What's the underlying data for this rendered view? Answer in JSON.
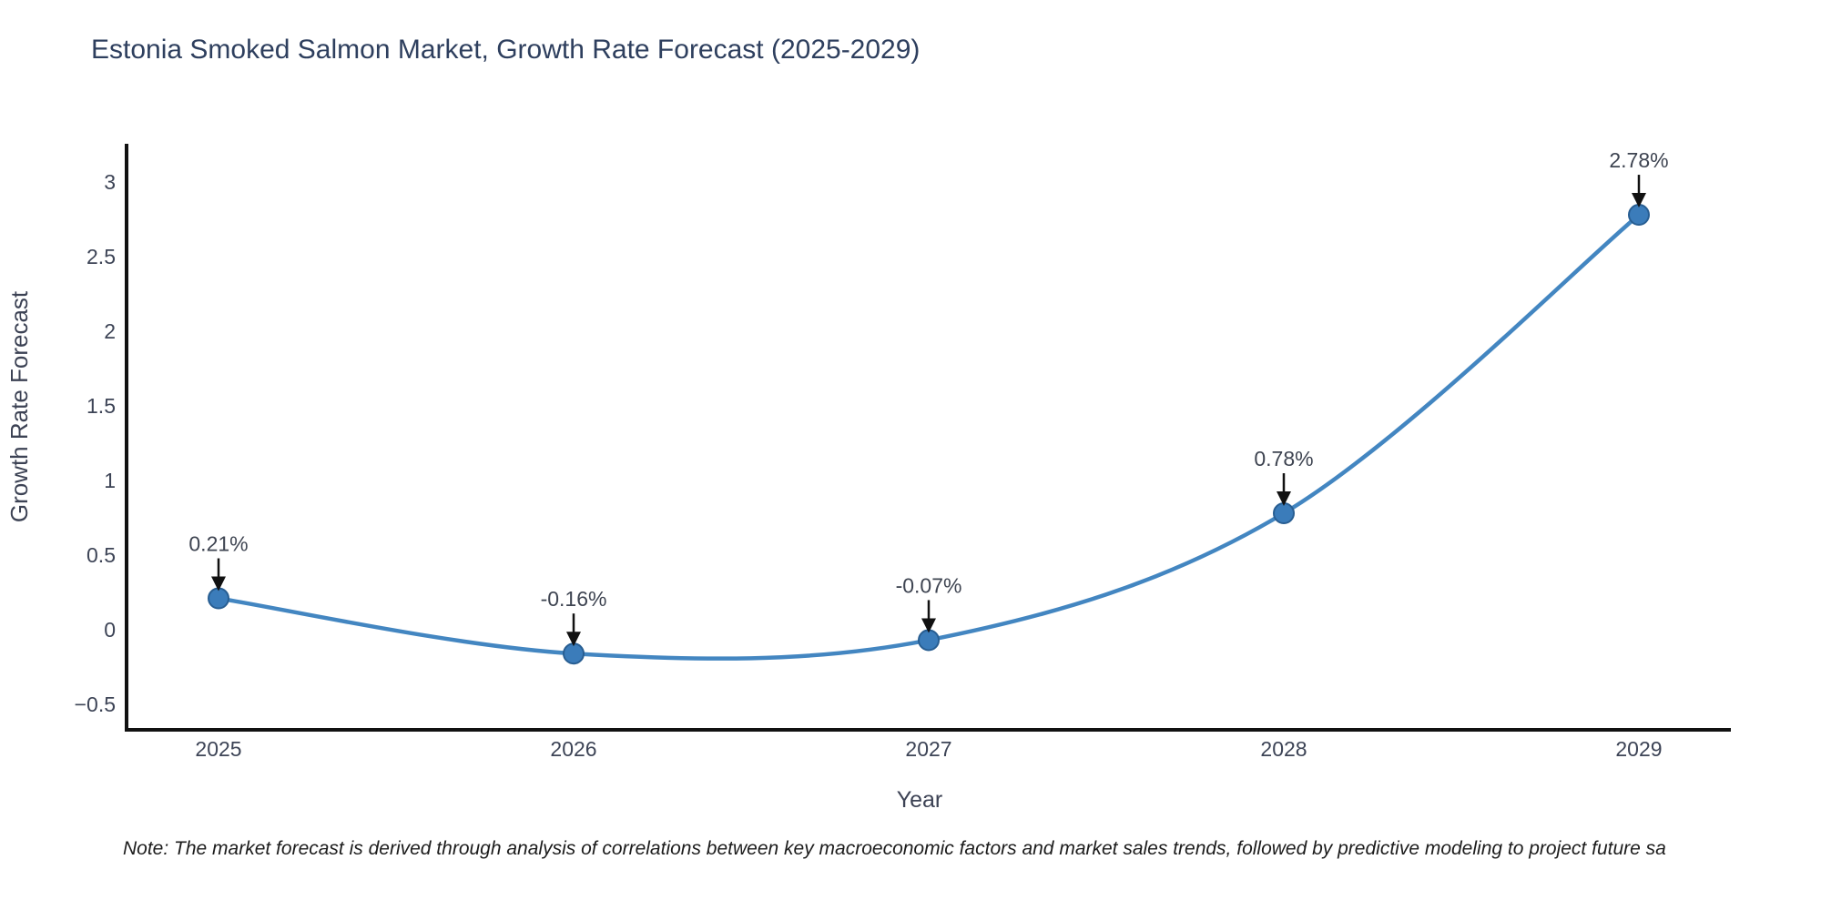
{
  "note": "Note: The market forecast is derived through analysis of correlations between key macroeconomic factors and market sales trends, followed by predictive modeling to project future sa",
  "chart_data": {
    "type": "line",
    "title": "Estonia Smoked Salmon Market, Growth Rate Forecast (2025-2029)",
    "xlabel": "Year",
    "ylabel": "Growth Rate Forecast",
    "x": [
      2025,
      2026,
      2027,
      2028,
      2029
    ],
    "values": [
      0.21,
      -0.16,
      -0.07,
      0.78,
      2.78
    ],
    "point_labels": [
      "0.21%",
      "-0.16%",
      "-0.07%",
      "0.78%",
      "2.78%"
    ],
    "x_tick_labels": [
      "2025",
      "2026",
      "2027",
      "2028",
      "2029"
    ],
    "y_ticks": [
      -0.5,
      0,
      0.5,
      1,
      1.5,
      2,
      2.5,
      3
    ],
    "y_tick_labels": [
      "−0.5",
      "0",
      "0.5",
      "1",
      "1.5",
      "2",
      "2.5",
      "3"
    ],
    "xlim": [
      2024.741,
      2029.259
    ],
    "ylim": [
      -0.671,
      3.256
    ],
    "grid": false,
    "legend": "none",
    "line_shape": "spline",
    "colors": {
      "line": "#4386c1",
      "marker_fill": "#3b7cba",
      "marker_edge": "#285e92",
      "axis": "#111111",
      "tick_text": "#3d4456",
      "axis_title_text": "#3c4254",
      "title_text": "#2e3f5e",
      "annotation_text": "#3e4451",
      "arrow": "#111111",
      "note_text": "#1c1c1c",
      "background": "#ffffff"
    }
  }
}
